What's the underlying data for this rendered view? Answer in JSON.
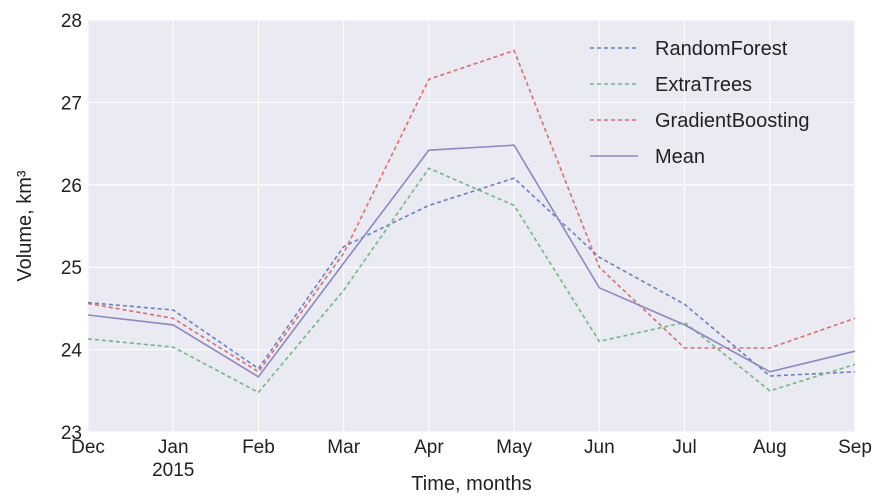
{
  "chart_data": {
    "type": "line",
    "title": "",
    "xlabel": "Time, months",
    "ylabel": "Volume, km³",
    "categories": [
      "Dec",
      "Jan",
      "Feb",
      "Mar",
      "Apr",
      "May",
      "Jun",
      "Jul",
      "Aug",
      "Sep"
    ],
    "x_sublabels": {
      "Jan": "2015"
    },
    "ylim": [
      23,
      28
    ],
    "yticks": [
      "23",
      "24",
      "25",
      "26",
      "27",
      "28"
    ],
    "grid": true,
    "legend_position": "top-right",
    "series": [
      {
        "name": "RandomForest",
        "style": "dashed",
        "color": "#6a7fc4",
        "values": [
          24.57,
          24.48,
          23.77,
          25.25,
          25.75,
          26.08,
          25.12,
          24.55,
          23.68,
          23.73
        ]
      },
      {
        "name": "ExtraTrees",
        "style": "dashed",
        "color": "#6dba7f",
        "values": [
          24.13,
          24.03,
          23.48,
          24.72,
          26.2,
          25.75,
          24.1,
          24.33,
          23.5,
          23.82
        ]
      },
      {
        "name": "GradientBoosting",
        "style": "dashed",
        "color": "#e06a6a",
        "values": [
          24.56,
          24.38,
          23.73,
          25.17,
          27.28,
          27.63,
          25.0,
          24.02,
          24.02,
          24.38
        ]
      },
      {
        "name": "Mean",
        "style": "solid",
        "color": "#8c88c4",
        "values": [
          24.42,
          24.3,
          23.67,
          25.05,
          26.42,
          26.48,
          24.75,
          24.3,
          23.73,
          23.98
        ]
      }
    ],
    "colors": {
      "plot_background": "#eaeaf2",
      "grid": "#ffffff"
    }
  }
}
